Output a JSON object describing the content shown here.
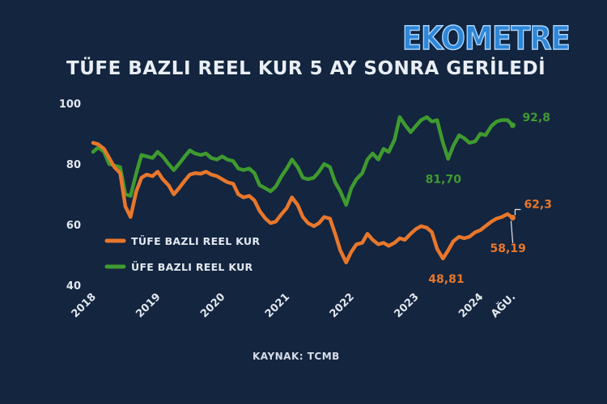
{
  "brand": "EKOMETRE",
  "title": "TÜFE BAZLI REEL KUR 5 AY SONRA GERİLEDİ",
  "source": "KAYNAK: TCMB",
  "colors": {
    "background": "#13253f",
    "tufe": "#e8772b",
    "ufe": "#3f9a2f",
    "axis": "#e3e8ef"
  },
  "chart_data": {
    "type": "line",
    "title": "TÜFE BAZLI REEL KUR 5 AY SONRA GERİLEDİ",
    "ylim": [
      40,
      100
    ],
    "yticks": [
      40,
      60,
      80,
      100
    ],
    "xlim": [
      2018.0,
      2024.67
    ],
    "xticks": [
      {
        "label": "2018",
        "x": 2018.0
      },
      {
        "label": "2019",
        "x": 2019.0
      },
      {
        "label": "2020",
        "x": 2020.0
      },
      {
        "label": "2021",
        "x": 2021.0
      },
      {
        "label": "2022",
        "x": 2022.0
      },
      {
        "label": "2023",
        "x": 2023.0
      },
      {
        "label": "2024",
        "x": 2024.0
      },
      {
        "label": "AĞU.",
        "x": 2024.5
      }
    ],
    "grid": false,
    "legend": "middle-left",
    "series": [
      {
        "name": "TÜFE BAZLI REEL KUR",
        "color": "#e8772b",
        "points": [
          [
            2018.0,
            87.0
          ],
          [
            2018.08,
            86.5
          ],
          [
            2018.17,
            85.0
          ],
          [
            2018.25,
            82.0
          ],
          [
            2018.33,
            79.0
          ],
          [
            2018.42,
            77.0
          ],
          [
            2018.5,
            66.0
          ],
          [
            2018.58,
            62.5
          ],
          [
            2018.67,
            71.0
          ],
          [
            2018.75,
            75.5
          ],
          [
            2018.83,
            76.5
          ],
          [
            2018.92,
            76.0
          ],
          [
            2019.0,
            77.5
          ],
          [
            2019.08,
            75.0
          ],
          [
            2019.17,
            73.0
          ],
          [
            2019.25,
            70.0
          ],
          [
            2019.33,
            72.0
          ],
          [
            2019.42,
            74.5
          ],
          [
            2019.5,
            76.5
          ],
          [
            2019.58,
            77.0
          ],
          [
            2019.67,
            76.8
          ],
          [
            2019.75,
            77.5
          ],
          [
            2019.83,
            76.5
          ],
          [
            2019.92,
            76.0
          ],
          [
            2020.0,
            75.0
          ],
          [
            2020.08,
            74.0
          ],
          [
            2020.17,
            73.5
          ],
          [
            2020.25,
            70.0
          ],
          [
            2020.33,
            69.0
          ],
          [
            2020.42,
            69.5
          ],
          [
            2020.5,
            68.0
          ],
          [
            2020.58,
            64.5
          ],
          [
            2020.67,
            62.0
          ],
          [
            2020.75,
            60.5
          ],
          [
            2020.83,
            61.0
          ],
          [
            2020.92,
            63.5
          ],
          [
            2021.0,
            65.5
          ],
          [
            2021.08,
            69.0
          ],
          [
            2021.17,
            66.5
          ],
          [
            2021.25,
            62.5
          ],
          [
            2021.33,
            60.5
          ],
          [
            2021.42,
            59.5
          ],
          [
            2021.5,
            60.5
          ],
          [
            2021.58,
            62.5
          ],
          [
            2021.67,
            62.0
          ],
          [
            2021.75,
            57.0
          ],
          [
            2021.83,
            51.5
          ],
          [
            2021.92,
            47.5
          ],
          [
            2022.0,
            51.0
          ],
          [
            2022.08,
            53.5
          ],
          [
            2022.17,
            54.0
          ],
          [
            2022.25,
            57.0
          ],
          [
            2022.33,
            55.0
          ],
          [
            2022.42,
            53.5
          ],
          [
            2022.5,
            54.0
          ],
          [
            2022.58,
            53.0
          ],
          [
            2022.67,
            54.0
          ],
          [
            2022.75,
            55.5
          ],
          [
            2022.83,
            55.0
          ],
          [
            2022.92,
            57.0
          ],
          [
            2023.0,
            58.5
          ],
          [
            2023.08,
            59.5
          ],
          [
            2023.17,
            59.0
          ],
          [
            2023.25,
            57.5
          ],
          [
            2023.33,
            52.0
          ],
          [
            2023.42,
            48.81
          ],
          [
            2023.5,
            51.5
          ],
          [
            2023.58,
            54.5
          ],
          [
            2023.67,
            56.0
          ],
          [
            2023.75,
            55.5
          ],
          [
            2023.83,
            56.0
          ],
          [
            2023.92,
            57.5
          ],
          [
            2024.0,
            58.19
          ],
          [
            2024.08,
            59.5
          ],
          [
            2024.17,
            61.0
          ],
          [
            2024.25,
            62.0
          ],
          [
            2024.33,
            62.5
          ],
          [
            2024.42,
            63.5
          ],
          [
            2024.5,
            62.3
          ]
        ]
      },
      {
        "name": "ÜFE BAZLI REEL KUR",
        "color": "#3f9a2f",
        "points": [
          [
            2018.0,
            84.0
          ],
          [
            2018.08,
            85.5
          ],
          [
            2018.17,
            84.0
          ],
          [
            2018.25,
            80.0
          ],
          [
            2018.33,
            79.5
          ],
          [
            2018.42,
            79.0
          ],
          [
            2018.5,
            70.0
          ],
          [
            2018.58,
            69.5
          ],
          [
            2018.67,
            77.0
          ],
          [
            2018.75,
            83.0
          ],
          [
            2018.83,
            82.5
          ],
          [
            2018.92,
            82.0
          ],
          [
            2019.0,
            84.0
          ],
          [
            2019.08,
            82.5
          ],
          [
            2019.17,
            80.0
          ],
          [
            2019.25,
            78.0
          ],
          [
            2019.33,
            80.0
          ],
          [
            2019.42,
            82.5
          ],
          [
            2019.5,
            84.5
          ],
          [
            2019.58,
            83.5
          ],
          [
            2019.67,
            83.0
          ],
          [
            2019.75,
            83.5
          ],
          [
            2019.83,
            82.0
          ],
          [
            2019.92,
            81.5
          ],
          [
            2020.0,
            82.5
          ],
          [
            2020.08,
            81.5
          ],
          [
            2020.17,
            81.0
          ],
          [
            2020.25,
            78.5
          ],
          [
            2020.33,
            78.0
          ],
          [
            2020.42,
            78.5
          ],
          [
            2020.5,
            77.0
          ],
          [
            2020.58,
            73.0
          ],
          [
            2020.67,
            72.0
          ],
          [
            2020.75,
            71.0
          ],
          [
            2020.83,
            72.5
          ],
          [
            2020.92,
            76.0
          ],
          [
            2021.0,
            78.5
          ],
          [
            2021.08,
            81.5
          ],
          [
            2021.17,
            79.0
          ],
          [
            2021.25,
            75.5
          ],
          [
            2021.33,
            75.0
          ],
          [
            2021.42,
            75.5
          ],
          [
            2021.5,
            77.5
          ],
          [
            2021.58,
            80.0
          ],
          [
            2021.67,
            79.0
          ],
          [
            2021.75,
            74.0
          ],
          [
            2021.83,
            71.0
          ],
          [
            2021.92,
            66.5
          ],
          [
            2022.0,
            72.0
          ],
          [
            2022.08,
            75.0
          ],
          [
            2022.17,
            77.0
          ],
          [
            2022.25,
            81.5
          ],
          [
            2022.33,
            83.5
          ],
          [
            2022.42,
            81.5
          ],
          [
            2022.5,
            85.0
          ],
          [
            2022.58,
            84.0
          ],
          [
            2022.67,
            88.0
          ],
          [
            2022.75,
            95.5
          ],
          [
            2022.83,
            93.0
          ],
          [
            2022.92,
            90.5
          ],
          [
            2023.0,
            92.5
          ],
          [
            2023.08,
            94.5
          ],
          [
            2023.17,
            95.5
          ],
          [
            2023.25,
            94.0
          ],
          [
            2023.33,
            94.5
          ],
          [
            2023.42,
            87.0
          ],
          [
            2023.5,
            81.7
          ],
          [
            2023.58,
            86.0
          ],
          [
            2023.67,
            89.5
          ],
          [
            2023.75,
            88.5
          ],
          [
            2023.83,
            87.0
          ],
          [
            2023.92,
            87.5
          ],
          [
            2024.0,
            90.0
          ],
          [
            2024.08,
            89.5
          ],
          [
            2024.17,
            92.5
          ],
          [
            2024.25,
            94.0
          ],
          [
            2024.33,
            94.5
          ],
          [
            2024.42,
            94.5
          ],
          [
            2024.5,
            92.8
          ]
        ]
      }
    ],
    "annotations": [
      {
        "text": "92,8",
        "series": 1,
        "x": 2024.5,
        "y": 92.8
      },
      {
        "text": "81,70",
        "series": 1,
        "x": 2023.5,
        "y": 81.7
      },
      {
        "text": "62,3",
        "series": 0,
        "x": 2024.5,
        "y": 62.3
      },
      {
        "text": "58,19",
        "series": 0,
        "x": 2024.0,
        "y": 58.19
      },
      {
        "text": "48,81",
        "series": 0,
        "x": 2023.42,
        "y": 48.81
      }
    ]
  }
}
